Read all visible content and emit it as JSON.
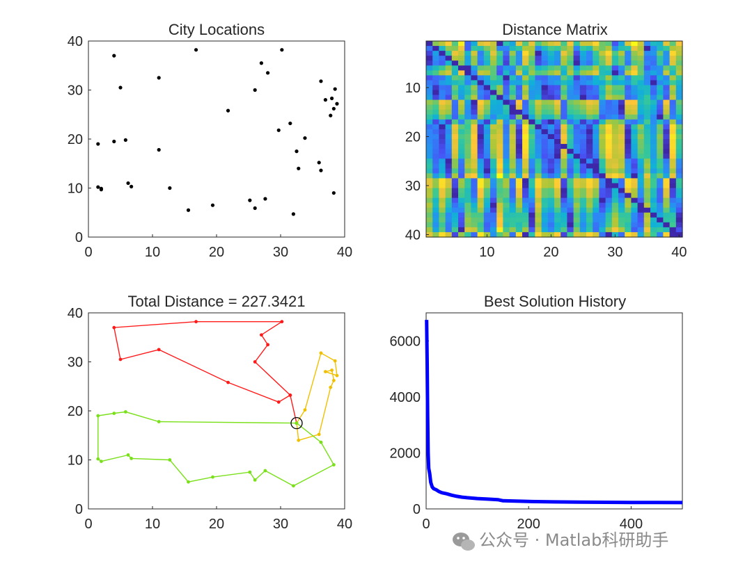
{
  "watermark": "公众号 · Matlab科研助手",
  "chart_data": [
    {
      "type": "scatter",
      "title": "City Locations",
      "xlabel": "",
      "ylabel": "",
      "xlim": [
        0,
        40
      ],
      "ylim": [
        0,
        40
      ],
      "xticks": [
        0,
        10,
        20,
        30,
        40
      ],
      "yticks": [
        0,
        10,
        20,
        30,
        40
      ],
      "marker_color": "#000000",
      "points": [
        [
          4.0,
          37.0
        ],
        [
          16.8,
          38.2
        ],
        [
          30.2,
          38.2
        ],
        [
          27.0,
          35.5
        ],
        [
          28.0,
          33.5
        ],
        [
          11.0,
          32.5
        ],
        [
          5.0,
          30.5
        ],
        [
          26.0,
          30.0
        ],
        [
          21.8,
          25.8
        ],
        [
          31.5,
          23.2
        ],
        [
          29.7,
          21.8
        ],
        [
          33.8,
          20.2
        ],
        [
          1.5,
          19.0
        ],
        [
          4.0,
          19.5
        ],
        [
          5.8,
          19.8
        ],
        [
          11.0,
          17.8
        ],
        [
          32.5,
          17.5
        ],
        [
          36.3,
          31.8
        ],
        [
          37.0,
          28.0
        ],
        [
          38.5,
          30.2
        ],
        [
          38.0,
          28.3
        ],
        [
          38.8,
          27.2
        ],
        [
          38.3,
          26.2
        ],
        [
          37.8,
          24.8
        ],
        [
          36.0,
          15.2
        ],
        [
          36.3,
          13.6
        ],
        [
          32.8,
          14.0
        ],
        [
          38.3,
          9.0
        ],
        [
          1.5,
          10.2
        ],
        [
          2.0,
          9.7
        ],
        [
          6.2,
          11.0
        ],
        [
          6.7,
          10.3
        ],
        [
          12.7,
          10.0
        ],
        [
          15.6,
          5.5
        ],
        [
          19.4,
          6.5
        ],
        [
          25.2,
          7.5
        ],
        [
          26.0,
          5.9
        ],
        [
          27.6,
          7.8
        ],
        [
          32.0,
          4.7
        ],
        [
          2.0,
          9.9
        ]
      ]
    },
    {
      "type": "heatmap",
      "title": "Distance Matrix",
      "xlim": [
        0.5,
        40.5
      ],
      "ylim": [
        0.5,
        40.5
      ],
      "xticks": [
        10,
        20,
        30,
        40
      ],
      "yticks": [
        10,
        20,
        30,
        40
      ],
      "y_direction": "reverse",
      "colormap": "parula",
      "source": "pairwise distances between the 40 city locations",
      "rows": 40,
      "cols": 40
    },
    {
      "type": "line",
      "title": "Total Distance = 227.3421",
      "xlim": [
        0,
        40
      ],
      "ylim": [
        0,
        40
      ],
      "xticks": [
        0,
        10,
        20,
        30,
        40
      ],
      "yticks": [
        0,
        10,
        20,
        30,
        40
      ],
      "depot": [
        32.5,
        17.5
      ],
      "series": [
        {
          "name": "route-red",
          "color": "#ff1a1a",
          "points": [
            [
              32.5,
              17.5
            ],
            [
              31.5,
              23.2
            ],
            [
              29.7,
              21.8
            ],
            [
              21.8,
              25.8
            ],
            [
              11.0,
              32.5
            ],
            [
              5.0,
              30.5
            ],
            [
              4.0,
              37.0
            ],
            [
              16.8,
              38.2
            ],
            [
              30.2,
              38.2
            ],
            [
              27.0,
              35.5
            ],
            [
              28.0,
              33.5
            ],
            [
              26.0,
              30.0
            ],
            [
              31.5,
              23.2
            ],
            [
              32.5,
              17.5
            ]
          ]
        },
        {
          "name": "route-yellow",
          "color": "#f0c000",
          "points": [
            [
              32.5,
              17.5
            ],
            [
              33.8,
              20.2
            ],
            [
              36.3,
              31.8
            ],
            [
              38.5,
              30.2
            ],
            [
              38.8,
              27.2
            ],
            [
              37.0,
              28.0
            ],
            [
              38.0,
              28.3
            ],
            [
              38.3,
              26.2
            ],
            [
              37.8,
              24.8
            ],
            [
              36.0,
              15.2
            ],
            [
              32.8,
              14.0
            ],
            [
              32.5,
              17.5
            ]
          ]
        },
        {
          "name": "route-green",
          "color": "#7ae01a",
          "points": [
            [
              32.5,
              17.5
            ],
            [
              11.0,
              17.8
            ],
            [
              5.8,
              19.8
            ],
            [
              4.0,
              19.5
            ],
            [
              1.5,
              19.0
            ],
            [
              1.5,
              10.2
            ],
            [
              2.0,
              9.7
            ],
            [
              6.2,
              11.0
            ],
            [
              6.7,
              10.3
            ],
            [
              12.7,
              10.0
            ],
            [
              15.6,
              5.5
            ],
            [
              19.4,
              6.5
            ],
            [
              25.2,
              7.5
            ],
            [
              26.0,
              5.9
            ],
            [
              27.6,
              7.8
            ],
            [
              32.0,
              4.7
            ],
            [
              38.3,
              9.0
            ],
            [
              36.3,
              13.6
            ],
            [
              32.5,
              17.5
            ]
          ]
        }
      ]
    },
    {
      "type": "line",
      "title": "Best Solution History",
      "xlim": [
        0,
        500
      ],
      "ylim": [
        0,
        7000
      ],
      "xticks": [
        0,
        200,
        400
      ],
      "yticks": [
        0,
        2000,
        4000,
        6000
      ],
      "color": "#0000ff",
      "x": [
        1,
        2,
        3,
        4,
        5,
        7,
        9,
        12,
        15,
        20,
        25,
        30,
        40,
        50,
        60,
        70,
        80,
        100,
        120,
        140,
        150,
        175,
        200,
        250,
        300,
        350,
        400,
        450,
        500
      ],
      "y": [
        6750,
        5200,
        3300,
        2000,
        1450,
        1250,
        950,
        780,
        720,
        680,
        620,
        580,
        540,
        490,
        450,
        420,
        400,
        370,
        350,
        330,
        290,
        280,
        265,
        250,
        240,
        235,
        230,
        228,
        227
      ]
    }
  ]
}
